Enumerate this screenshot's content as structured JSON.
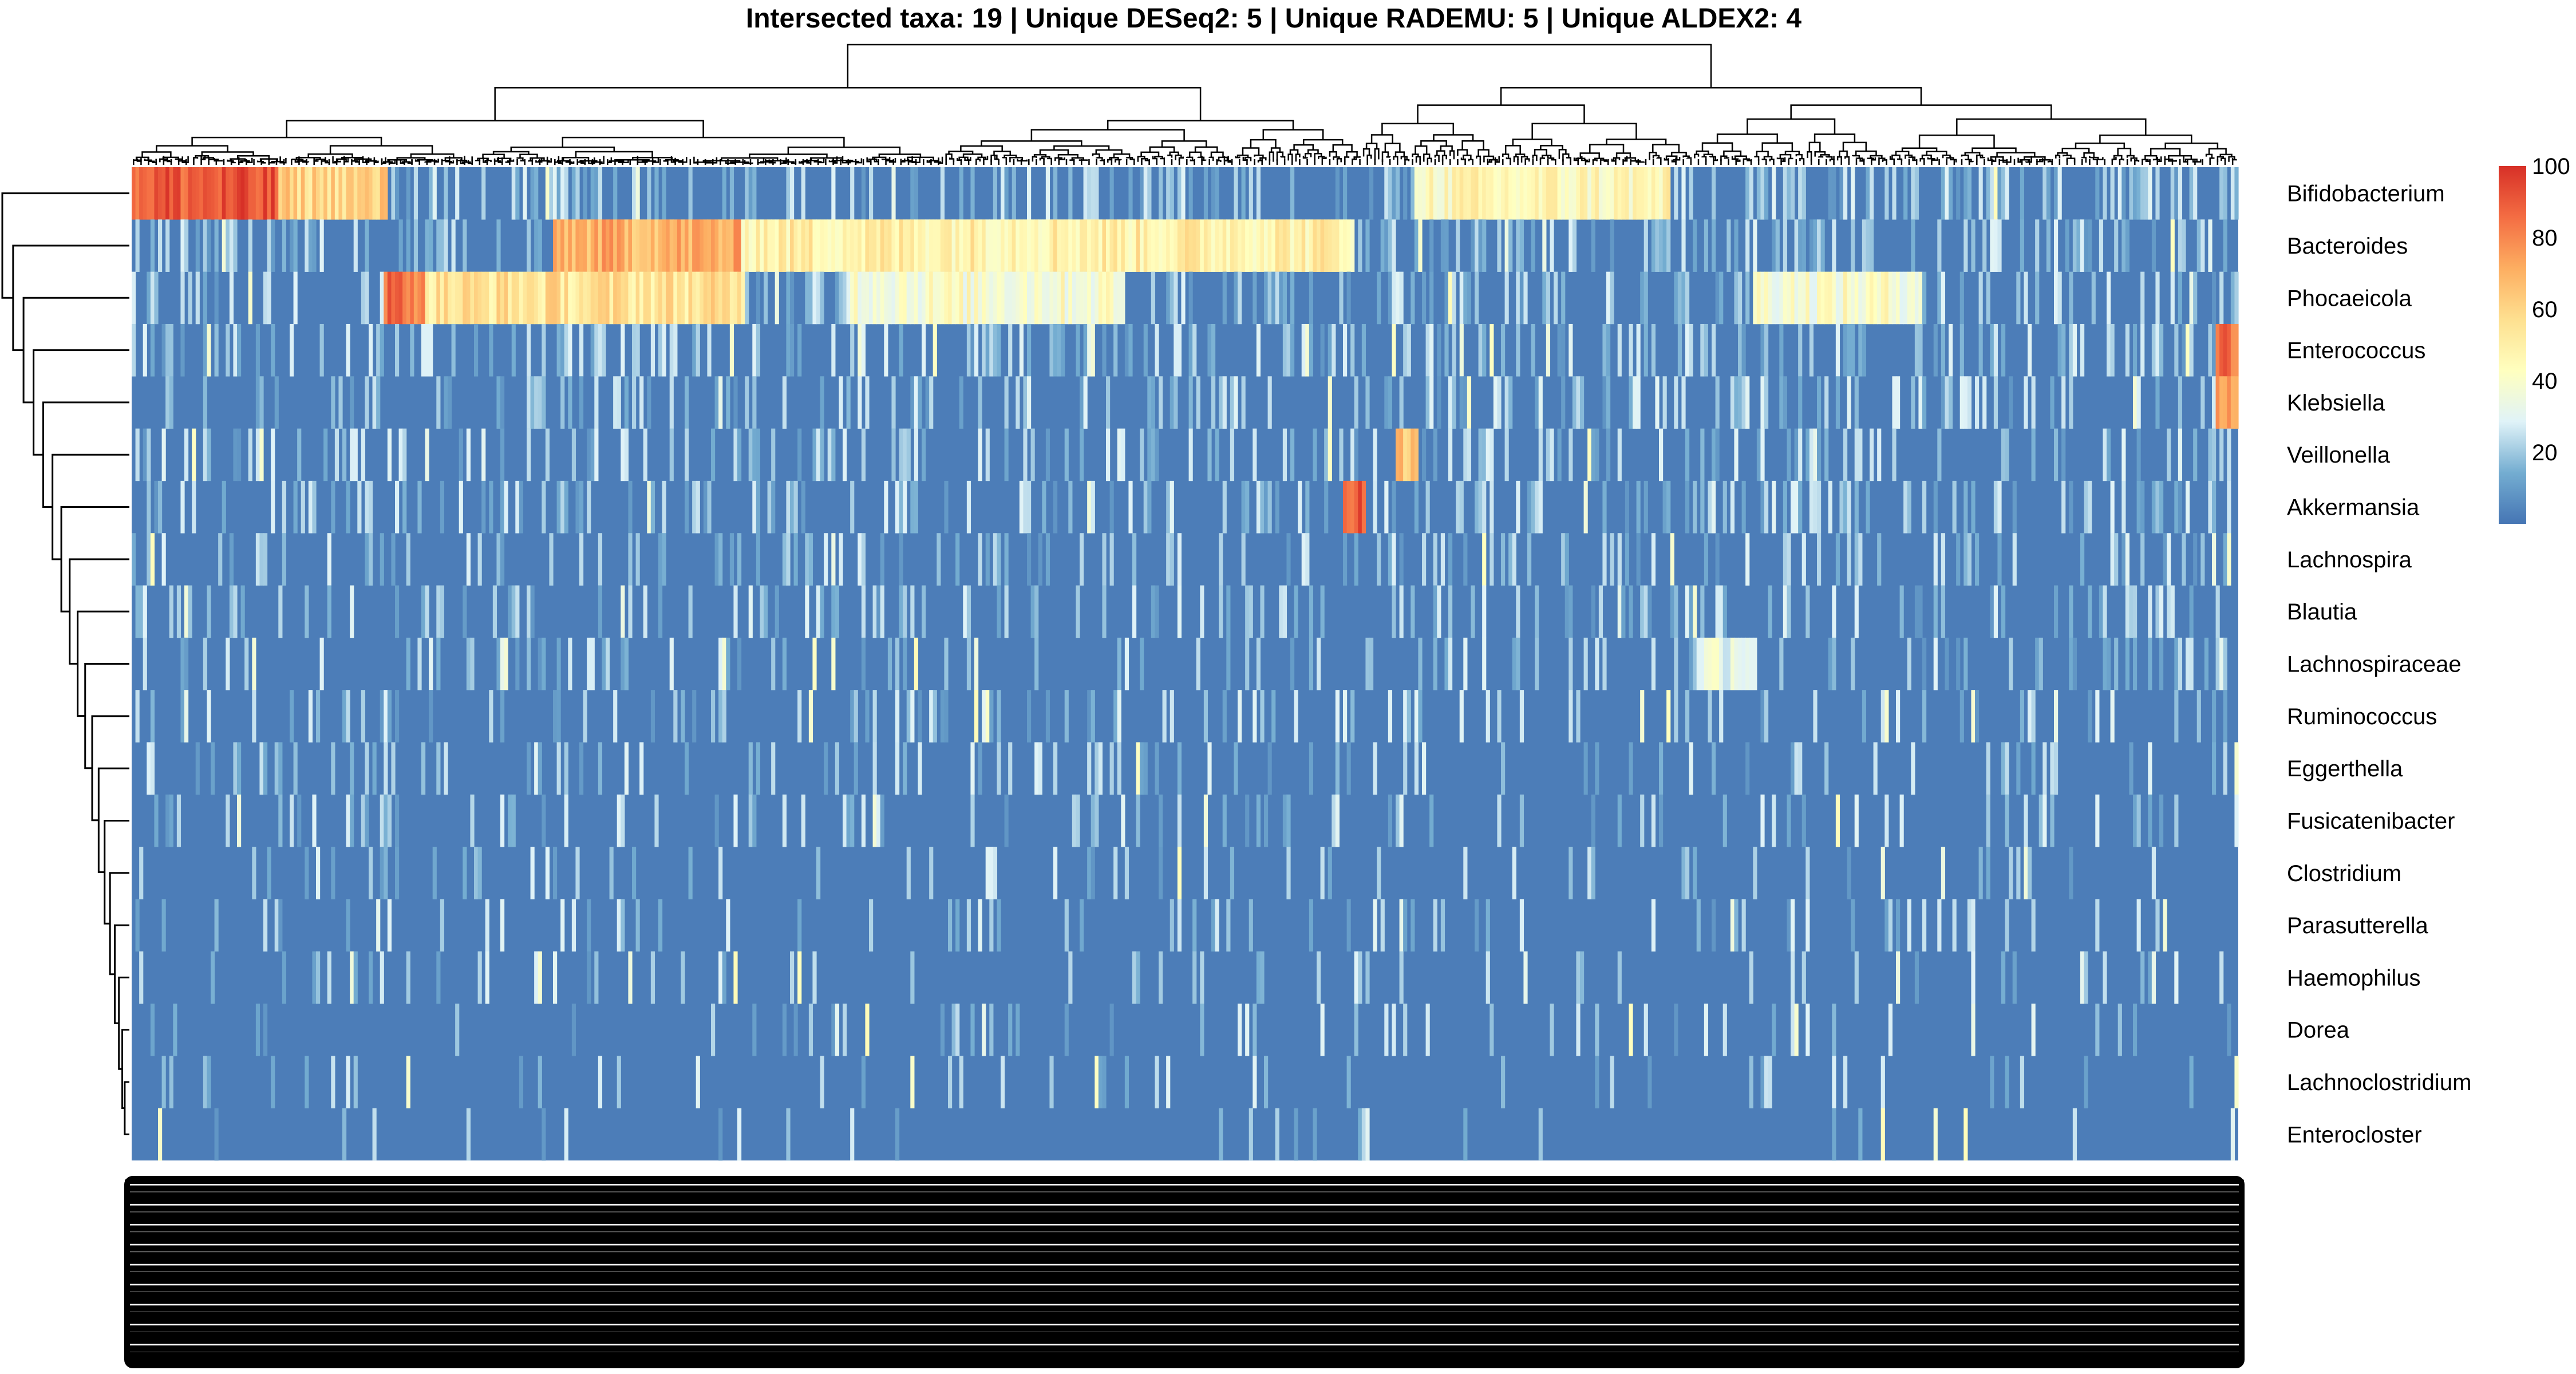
{
  "chart_data": {
    "type": "heatmap",
    "title": "Intersected taxa: 19 | Unique DESeq2: 5 | Unique RADEMU: 5 | Unique ALDEX2: 4",
    "xlabel": "",
    "ylabel": "",
    "rows": [
      "Bifidobacterium",
      "Bacteroides",
      "Phocaeicola",
      "Enterococcus",
      "Klebsiella",
      "Veillonella",
      "Akkermansia",
      "Lachnospira",
      "Blautia",
      "Lachnospiraceae",
      "Ruminococcus",
      "Eggerthella",
      "Fusicatenibacter",
      "Clostridium",
      "Parasutterella",
      "Haemophilus",
      "Dorea",
      "Lachnoclostridium",
      "Enterocloster"
    ],
    "column_labels": "illegible (overplotted sample names)",
    "value_range": [
      0,
      100
    ],
    "legend": {
      "position": "right",
      "ticks": [
        20,
        40,
        60,
        80,
        100
      ],
      "colors": [
        "#4575B4",
        "#74ADD1",
        "#E0F3F8",
        "#FFFFBF",
        "#FEE090",
        "#FDAE61",
        "#F46D43",
        "#D73027"
      ]
    },
    "row_dendrogram": true,
    "column_dendrogram": true,
    "dominant_blocks": [
      {
        "row": "Bifidobacterium",
        "column_fraction": [
          0.0,
          0.07
        ],
        "value": 90
      },
      {
        "row": "Bifidobacterium",
        "column_fraction": [
          0.07,
          0.12
        ],
        "value": 60
      },
      {
        "row": "Bifidobacterium",
        "column_fraction": [
          0.61,
          0.73
        ],
        "value": 45
      },
      {
        "row": "Bacteroides",
        "column_fraction": [
          0.2,
          0.29
        ],
        "value": 70
      },
      {
        "row": "Bacteroides",
        "column_fraction": [
          0.29,
          0.58
        ],
        "value": 50
      },
      {
        "row": "Phocaeicola",
        "column_fraction": [
          0.12,
          0.14
        ],
        "value": 85
      },
      {
        "row": "Phocaeicola",
        "column_fraction": [
          0.14,
          0.29
        ],
        "value": 55
      },
      {
        "row": "Phocaeicola",
        "column_fraction": [
          0.34,
          0.47
        ],
        "value": 40
      },
      {
        "row": "Phocaeicola",
        "column_fraction": [
          0.77,
          0.85
        ],
        "value": 40
      },
      {
        "row": "Enterococcus",
        "column_fraction": [
          0.99,
          1.0
        ],
        "value": 85
      },
      {
        "row": "Klebsiella",
        "column_fraction": [
          0.99,
          1.0
        ],
        "value": 75
      },
      {
        "row": "Veillonella",
        "column_fraction": [
          0.6,
          0.61
        ],
        "value": 65
      },
      {
        "row": "Akkermansia",
        "column_fraction": [
          0.575,
          0.585
        ],
        "value": 90
      },
      {
        "row": "Lachnospiraceae",
        "column_fraction": [
          0.745,
          0.77
        ],
        "value": 35
      }
    ]
  }
}
